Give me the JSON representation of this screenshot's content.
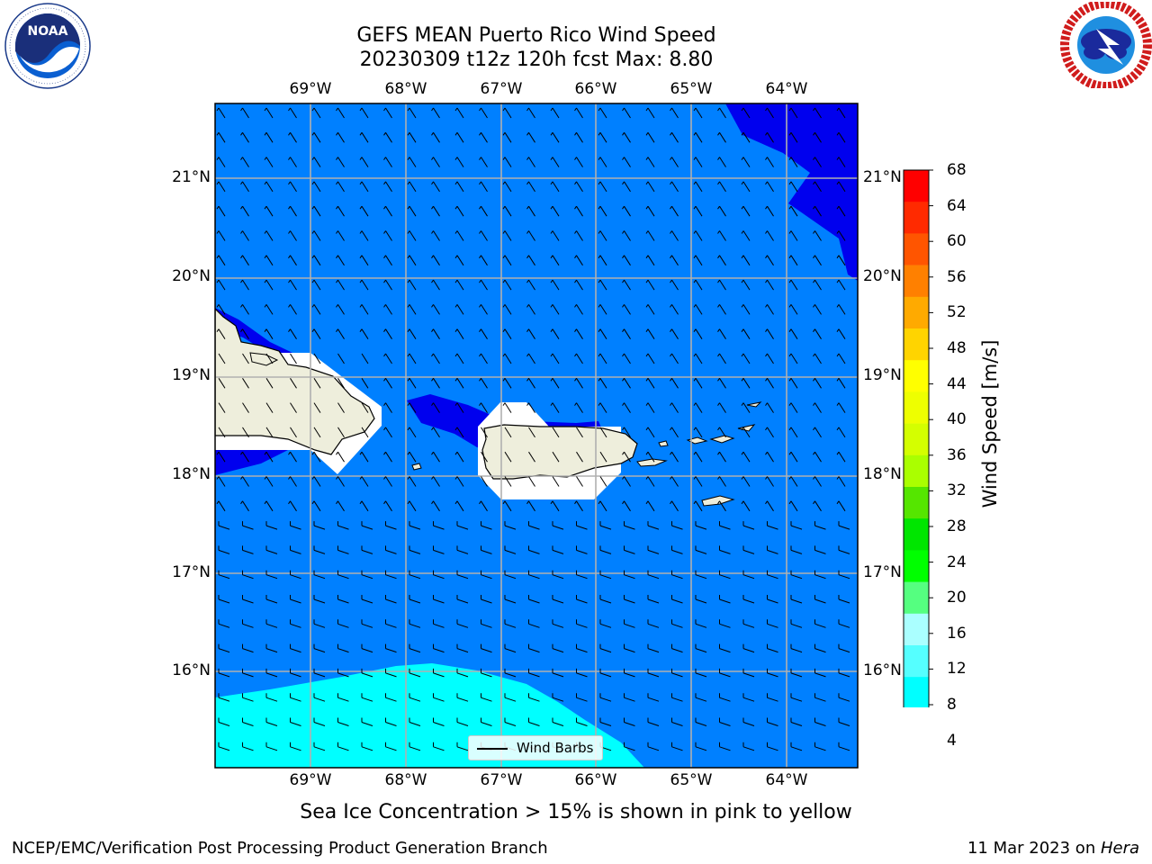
{
  "title": {
    "line1": "GEFS MEAN Puerto Rico Wind Speed",
    "line2": "20230309 t12z 120h fcst   Max: 8.80"
  },
  "logos": {
    "left": {
      "text": "NOAA",
      "ring_text": "NATIONAL OCEANIC AND ATMOSPHERIC ADMINISTRATION • U.S. DEPARTMENT OF COMMERCE"
    },
    "right": {
      "ring_text": "NATIONAL WEATHER SERVICE"
    }
  },
  "map": {
    "longitude_labels": [
      "69°W",
      "68°W",
      "67°W",
      "66°W",
      "65°W",
      "64°W"
    ],
    "latitude_labels": [
      "21°N",
      "20°N",
      "19°N",
      "18°N",
      "17°N",
      "16°N"
    ],
    "colors": {
      "ocean_4_8": "#0080ff",
      "dark_below_4": "#0000ee",
      "cyan_8_12": "#00ffff",
      "land": "#eeeedc",
      "gridline": "#b0b0b0"
    },
    "wind_barbs": {
      "direction": "from northeast to east",
      "legend_label": "Wind Barbs"
    }
  },
  "colorbar": {
    "label": "Wind Speed [m/s]",
    "ticks": [
      "68",
      "64",
      "60",
      "56",
      "52",
      "48",
      "44",
      "40",
      "36",
      "32",
      "28",
      "24",
      "20",
      "16",
      "12",
      "8",
      "4"
    ],
    "colors": [
      "#ff0000",
      "#ff2a00",
      "#ff5500",
      "#ff8000",
      "#ffaa00",
      "#ffd400",
      "#ffff00",
      "#eeff00",
      "#d4ff00",
      "#aaff00",
      "#55e600",
      "#00e600",
      "#00ff00",
      "#55ff80",
      "#aaffff",
      "#55ffff",
      "#00ffff",
      "#0080ff"
    ],
    "extend_color": "#0000ee"
  },
  "note": "Sea Ice Concentration > 15% is shown in pink to yellow",
  "footer": {
    "left": "NCEP/EMC/Verification Post Processing Product Generation Branch",
    "right_date": "11 Mar 2023 on ",
    "right_host": "Hera"
  }
}
